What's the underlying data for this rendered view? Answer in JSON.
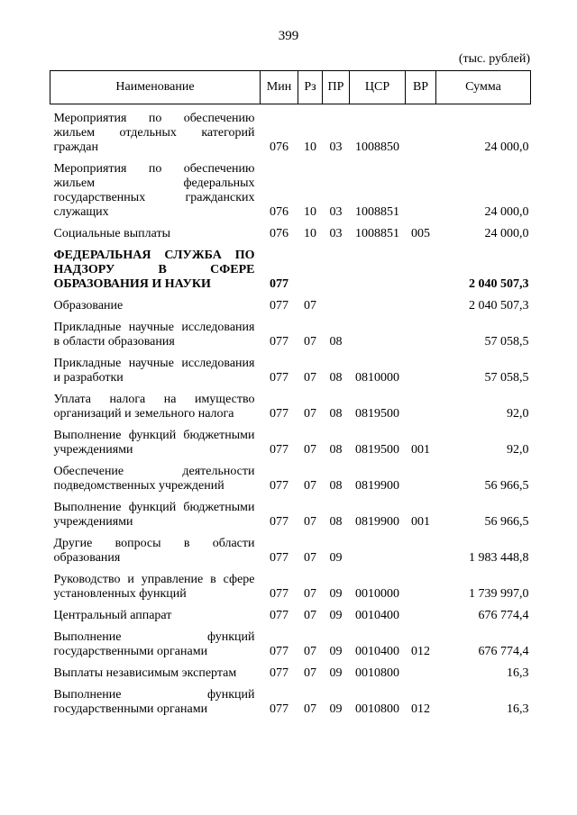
{
  "page_number": "399",
  "unit": "(тыс. рублей)",
  "header": {
    "columns": [
      "Наименование",
      "Мин",
      "Рз",
      "ПР",
      "ЦСР",
      "ВР",
      "Сумма"
    ]
  },
  "rows": [
    {
      "name": "Мероприятия по обеспечению жильем отдельных категорий граждан",
      "min": "076",
      "rz": "10",
      "pr": "03",
      "csr": "1008850",
      "sum": "24 000,0"
    },
    {
      "name": "Мероприятия по обеспечению жильем федеральных государственных гражданских служащих",
      "min": "076",
      "rz": "10",
      "pr": "03",
      "csr": "1008851",
      "sum": "24 000,0"
    },
    {
      "name": "Социальные выплаты",
      "min": "076",
      "rz": "10",
      "pr": "03",
      "csr": "1008851",
      "vr": "005",
      "sum": "24 000,0"
    },
    {
      "name": "ФЕДЕРАЛЬНАЯ СЛУЖБА ПО НАДЗОРУ В СФЕРЕ ОБРАЗОВАНИЯ И НАУКИ",
      "min": "077",
      "sum": "2 040 507,3",
      "bold": true
    },
    {
      "name": "Образование",
      "min": "077",
      "rz": "07",
      "sum": "2 040 507,3"
    },
    {
      "name": "Прикладные научные исследования в области образования",
      "min": "077",
      "rz": "07",
      "pr": "08",
      "sum": "57 058,5"
    },
    {
      "name": "Прикладные научные исследования и разработки",
      "min": "077",
      "rz": "07",
      "pr": "08",
      "csr": "0810000",
      "sum": "57 058,5"
    },
    {
      "name": "Уплата налога на имущество организаций и земельного налога",
      "min": "077",
      "rz": "07",
      "pr": "08",
      "csr": "0819500",
      "sum": "92,0"
    },
    {
      "name": "Выполнение функций бюджетными учреждениями",
      "min": "077",
      "rz": "07",
      "pr": "08",
      "csr": "0819500",
      "vr": "001",
      "sum": "92,0"
    },
    {
      "name": "Обеспечение деятельности подведомственных учреждений",
      "min": "077",
      "rz": "07",
      "pr": "08",
      "csr": "0819900",
      "sum": "56 966,5"
    },
    {
      "name": "Выполнение функций бюджетными учреждениями",
      "min": "077",
      "rz": "07",
      "pr": "08",
      "csr": "0819900",
      "vr": "001",
      "sum": "56 966,5"
    },
    {
      "name": "Другие вопросы в области образования",
      "min": "077",
      "rz": "07",
      "pr": "09",
      "sum": "1 983 448,8"
    },
    {
      "name": "Руководство и управление в сфере установленных функций",
      "min": "077",
      "rz": "07",
      "pr": "09",
      "csr": "0010000",
      "sum": "1 739 997,0"
    },
    {
      "name": "Центральный аппарат",
      "min": "077",
      "rz": "07",
      "pr": "09",
      "csr": "0010400",
      "sum": "676 774,4"
    },
    {
      "name": "Выполнение функций государственными органами",
      "min": "077",
      "rz": "07",
      "pr": "09",
      "csr": "0010400",
      "vr": "012",
      "sum": "676 774,4"
    },
    {
      "name": "Выплаты независимым экспертам",
      "min": "077",
      "rz": "07",
      "pr": "09",
      "csr": "0010800",
      "sum": "16,3"
    },
    {
      "name": "Выполнение функций государственными органами",
      "min": "077",
      "rz": "07",
      "pr": "09",
      "csr": "0010800",
      "vr": "012",
      "sum": "16,3"
    }
  ]
}
